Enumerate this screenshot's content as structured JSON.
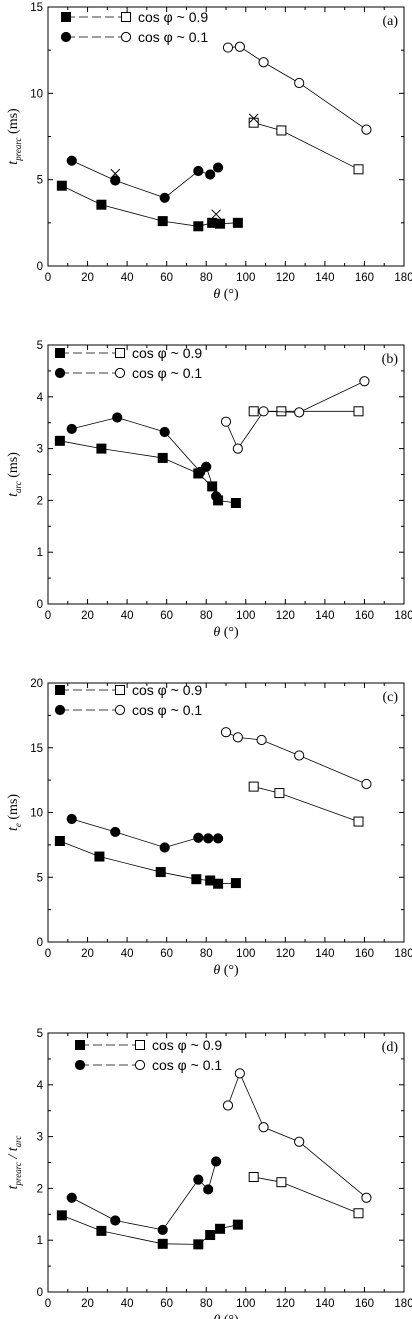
{
  "chart_data": [
    {
      "type": "line",
      "panel_label": "(a)",
      "ylabel_main": "t",
      "ylabel_sub": "prearc",
      "ylabel_unit": "(ms)",
      "xlabel": "θ (°)",
      "xlim": [
        0,
        180
      ],
      "ylim": [
        0,
        15
      ],
      "xticks": [
        0,
        20,
        40,
        60,
        80,
        100,
        120,
        140,
        160,
        180
      ],
      "yticks": [
        0,
        5,
        10,
        15
      ],
      "legend": [
        {
          "name": "cos φ ~ 0.9",
          "markers": [
            "square-filled",
            "square-open"
          ]
        },
        {
          "name": "cos φ ~ 0.1",
          "markers": [
            "circle-filled",
            "circle-open"
          ]
        }
      ],
      "series": [
        {
          "legend_group": 0,
          "marker": "square-filled",
          "x": [
            7,
            27,
            58,
            76,
            83,
            87,
            96
          ],
          "y": [
            4.65,
            3.55,
            2.6,
            2.3,
            2.5,
            2.45,
            2.5
          ]
        },
        {
          "legend_group": 0,
          "marker": "square-open",
          "x": [
            104,
            118,
            157
          ],
          "y": [
            8.3,
            7.85,
            5.6
          ]
        },
        {
          "legend_group": 1,
          "marker": "circle-filled",
          "x": [
            12,
            34,
            59,
            76,
            82,
            86
          ],
          "y": [
            6.1,
            4.95,
            3.95,
            5.5,
            5.3,
            5.7
          ]
        },
        {
          "legend_group": 1,
          "marker": "circle-open",
          "x": [
            91,
            97,
            109,
            127,
            161
          ],
          "y": [
            12.65,
            12.7,
            11.8,
            10.6,
            7.9
          ]
        }
      ],
      "cross_markers": {
        "x": [
          34,
          85,
          104
        ],
        "y": [
          5.35,
          3.0,
          8.55
        ]
      }
    },
    {
      "type": "line",
      "panel_label": "(b)",
      "ylabel_main": "t",
      "ylabel_sub": "arc",
      "ylabel_unit": "(ms)",
      "xlabel": "θ (°)",
      "xlim": [
        0,
        180
      ],
      "ylim": [
        0,
        5
      ],
      "xticks": [
        0,
        20,
        40,
        60,
        80,
        100,
        120,
        140,
        160,
        180
      ],
      "yticks": [
        0,
        1,
        2,
        3,
        4,
        5
      ],
      "legend": [
        {
          "name": "cos φ ~ 0.9",
          "markers": [
            "square-filled",
            "square-open"
          ]
        },
        {
          "name": "cos φ ~ 0.1",
          "markers": [
            "circle-filled",
            "circle-open"
          ]
        }
      ],
      "series": [
        {
          "legend_group": 0,
          "marker": "square-filled",
          "x": [
            6,
            27,
            58,
            76,
            83,
            86,
            95
          ],
          "y": [
            3.15,
            3.0,
            2.82,
            2.52,
            2.27,
            2.0,
            1.95
          ]
        },
        {
          "legend_group": 0,
          "marker": "square-open",
          "x": [
            104,
            118,
            157
          ],
          "y": [
            3.72,
            3.72,
            3.72
          ]
        },
        {
          "legend_group": 1,
          "marker": "circle-filled",
          "x": [
            12,
            35,
            59,
            77,
            80,
            85
          ],
          "y": [
            3.38,
            3.6,
            3.32,
            2.55,
            2.65,
            2.08
          ]
        },
        {
          "legend_group": 1,
          "marker": "circle-open",
          "x": [
            90,
            96,
            109,
            127,
            160
          ],
          "y": [
            3.52,
            3.0,
            3.72,
            3.7,
            4.3
          ]
        }
      ]
    },
    {
      "type": "line",
      "panel_label": "(c)",
      "ylabel_main": "t",
      "ylabel_sub": "e",
      "ylabel_unit": "(ms)",
      "xlabel": "θ (°)",
      "xlim": [
        0,
        180
      ],
      "ylim": [
        0,
        20
      ],
      "xticks": [
        0,
        20,
        40,
        60,
        80,
        100,
        120,
        140,
        160,
        180
      ],
      "yticks": [
        0,
        5,
        10,
        15,
        20
      ],
      "legend": [
        {
          "name": "cos φ ~ 0.9",
          "markers": [
            "square-filled",
            "square-open"
          ]
        },
        {
          "name": "cos φ ~ 0.1",
          "markers": [
            "circle-filled",
            "circle-open"
          ]
        }
      ],
      "series": [
        {
          "legend_group": 0,
          "marker": "square-filled",
          "x": [
            6,
            26,
            57,
            75,
            82,
            86,
            95
          ],
          "y": [
            7.8,
            6.6,
            5.4,
            4.85,
            4.75,
            4.5,
            4.55
          ]
        },
        {
          "legend_group": 0,
          "marker": "square-open",
          "x": [
            104,
            117,
            157
          ],
          "y": [
            12.0,
            11.5,
            9.3
          ]
        },
        {
          "legend_group": 1,
          "marker": "circle-filled",
          "x": [
            12,
            34,
            59,
            76,
            81,
            86
          ],
          "y": [
            9.5,
            8.5,
            7.3,
            8.05,
            8.0,
            8.0
          ]
        },
        {
          "legend_group": 1,
          "marker": "circle-open",
          "x": [
            90,
            96,
            108,
            127,
            161
          ],
          "y": [
            16.2,
            15.8,
            15.6,
            14.4,
            12.2
          ]
        }
      ]
    },
    {
      "type": "line",
      "panel_label": "(d)",
      "ylabel_main": "t",
      "ylabel_sub": "prearc",
      "ylabel_mid": " / t",
      "ylabel_sub2": "arc",
      "ylabel_unit": "",
      "xlabel": "θ (°)",
      "xlim": [
        0,
        180
      ],
      "ylim": [
        0,
        5
      ],
      "xticks": [
        0,
        20,
        40,
        60,
        80,
        100,
        120,
        140,
        160,
        180
      ],
      "yticks": [
        0,
        1,
        2,
        3,
        4,
        5
      ],
      "legend": [
        {
          "name": "cos φ ~ 0.9",
          "markers": [
            "square-filled",
            "square-open"
          ]
        },
        {
          "name": "cos φ ~ 0.1",
          "markers": [
            "circle-filled",
            "circle-open"
          ]
        }
      ],
      "series": [
        {
          "legend_group": 0,
          "marker": "square-filled",
          "x": [
            7,
            27,
            58,
            76,
            82,
            87,
            96
          ],
          "y": [
            1.48,
            1.18,
            0.93,
            0.92,
            1.1,
            1.22,
            1.3
          ]
        },
        {
          "legend_group": 0,
          "marker": "square-open",
          "x": [
            104,
            118,
            157
          ],
          "y": [
            2.22,
            2.12,
            1.52
          ]
        },
        {
          "legend_group": 1,
          "marker": "circle-filled",
          "x": [
            12,
            34,
            58,
            76,
            81,
            85
          ],
          "y": [
            1.82,
            1.38,
            1.2,
            2.17,
            1.98,
            2.52
          ]
        },
        {
          "legend_group": 1,
          "marker": "circle-open",
          "x": [
            91,
            97,
            109,
            127,
            161
          ],
          "y": [
            3.6,
            4.22,
            3.18,
            2.9,
            1.82
          ]
        }
      ]
    }
  ]
}
